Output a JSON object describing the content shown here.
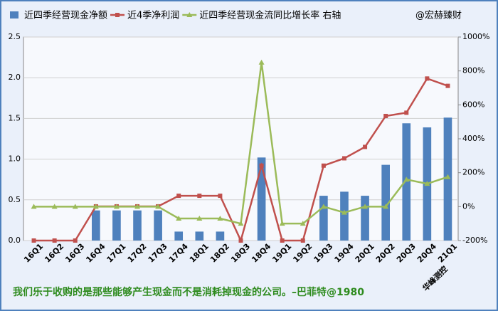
{
  "chart_data": {
    "type": "bar-line",
    "categories": [
      "16Q1",
      "16Q2",
      "16Q3",
      "16Q4",
      "17Q1",
      "17Q2",
      "17Q3",
      "17Q4",
      "18Q1",
      "18Q2",
      "18Q3",
      "18Q4",
      "19Q1",
      "19Q2",
      "19Q3",
      "19Q4",
      "20Q1",
      "20Q2",
      "20Q3",
      "20Q4",
      "21Q1"
    ],
    "series": [
      {
        "name": "近四季经营现金净额",
        "type": "bar",
        "color": "#4f81bd",
        "values": [
          0,
          0,
          0,
          0.37,
          0.37,
          0.37,
          0.37,
          0.11,
          0.11,
          0.11,
          0,
          1.02,
          0,
          0,
          0.55,
          0.6,
          0.55,
          0.93,
          1.44,
          1.39,
          1.51
        ]
      },
      {
        "name": "近4季净利润",
        "type": "line",
        "marker": "square",
        "color": "#c0504d",
        "values": [
          0,
          0,
          0,
          0.42,
          0.42,
          0.42,
          0.42,
          0.55,
          0.55,
          0.55,
          0,
          0.92,
          0,
          0,
          0.92,
          1.01,
          1.15,
          1.53,
          1.57,
          1.99,
          1.9
        ]
      },
      {
        "name": "近四季经营现金流同比增长率 右轴",
        "type": "line",
        "marker": "triangle",
        "axis": "y2",
        "color": "#9bbb59",
        "values": [
          0,
          0,
          0,
          0,
          0,
          0,
          0,
          -70,
          -70,
          -70,
          -100,
          850,
          -100,
          -100,
          0,
          -35,
          0,
          0,
          160,
          135,
          175
        ]
      }
    ],
    "ylim": [
      0,
      2.5
    ],
    "yticks": [
      {
        "value": 0,
        "label": "0.0"
      },
      0.5,
      {
        "value": 1,
        "label": "1.0"
      },
      1.5,
      {
        "value": 2,
        "label": "2.0"
      },
      2.5
    ],
    "y2lim": [
      -200,
      1000
    ],
    "y2ticks": [
      {
        "value": -200,
        "label": "-200%"
      },
      {
        "value": 0,
        "label": "0%"
      },
      {
        "value": 200,
        "label": "200%"
      },
      {
        "value": 400,
        "label": "400%"
      },
      {
        "value": 600,
        "label": "600%"
      },
      {
        "value": 800,
        "label": "800%"
      },
      {
        "value": 1000,
        "label": "1000%"
      }
    ],
    "grid": true,
    "legend": "top",
    "annotations": [
      "@宏赫臻财",
      "华峰测控",
      "我们乐于收购的是那些能够产生现金而不是消耗掉现金的公司。–巴菲特@1980"
    ]
  }
}
